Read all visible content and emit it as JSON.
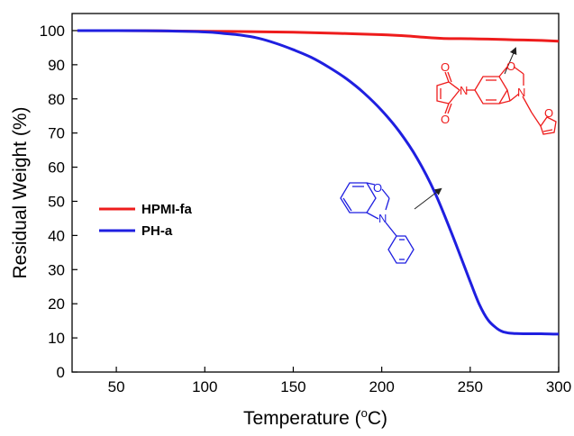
{
  "chart_data": {
    "type": "line",
    "xlabel": "Temperature (",
    "xlabel_unit": "o",
    "xlabel_tail": "C)",
    "ylabel": "Residual Weight (%)",
    "xlim": [
      25,
      300
    ],
    "ylim": [
      0,
      105
    ],
    "x_ticks": [
      50,
      100,
      150,
      200,
      250,
      300
    ],
    "y_ticks": [
      0,
      10,
      20,
      30,
      40,
      50,
      60,
      70,
      80,
      90,
      100
    ],
    "legend_placement": "middle-left",
    "series": [
      {
        "name": "HPMI-fa",
        "color": "#ee1c1c",
        "x": [
          28,
          50,
          75,
          100,
          125,
          150,
          175,
          200,
          215,
          225,
          235,
          250,
          260,
          275,
          290,
          300
        ],
        "y": [
          100,
          100,
          99.9,
          99.8,
          99.7,
          99.5,
          99.2,
          98.8,
          98.4,
          98.0,
          97.7,
          97.6,
          97.5,
          97.3,
          97.1,
          96.9
        ]
      },
      {
        "name": "PH-a",
        "color": "#1f1fe0",
        "x": [
          28,
          50,
          75,
          100,
          110,
          120,
          130,
          140,
          150,
          160,
          170,
          180,
          190,
          200,
          210,
          220,
          230,
          240,
          250,
          255,
          260,
          265,
          268,
          270,
          272,
          275,
          280,
          290,
          300
        ],
        "y": [
          100,
          100,
          99.9,
          99.6,
          99.2,
          98.7,
          97.8,
          96.3,
          94.4,
          92.2,
          89.3,
          85.9,
          81.7,
          76.6,
          70.4,
          62.6,
          52.6,
          40.0,
          26.5,
          20.0,
          15.3,
          12.8,
          11.9,
          11.6,
          11.4,
          11.3,
          11.2,
          11.2,
          11.1
        ]
      }
    ]
  },
  "atoms": {
    "o_letter": "O",
    "n_letter": "N"
  }
}
